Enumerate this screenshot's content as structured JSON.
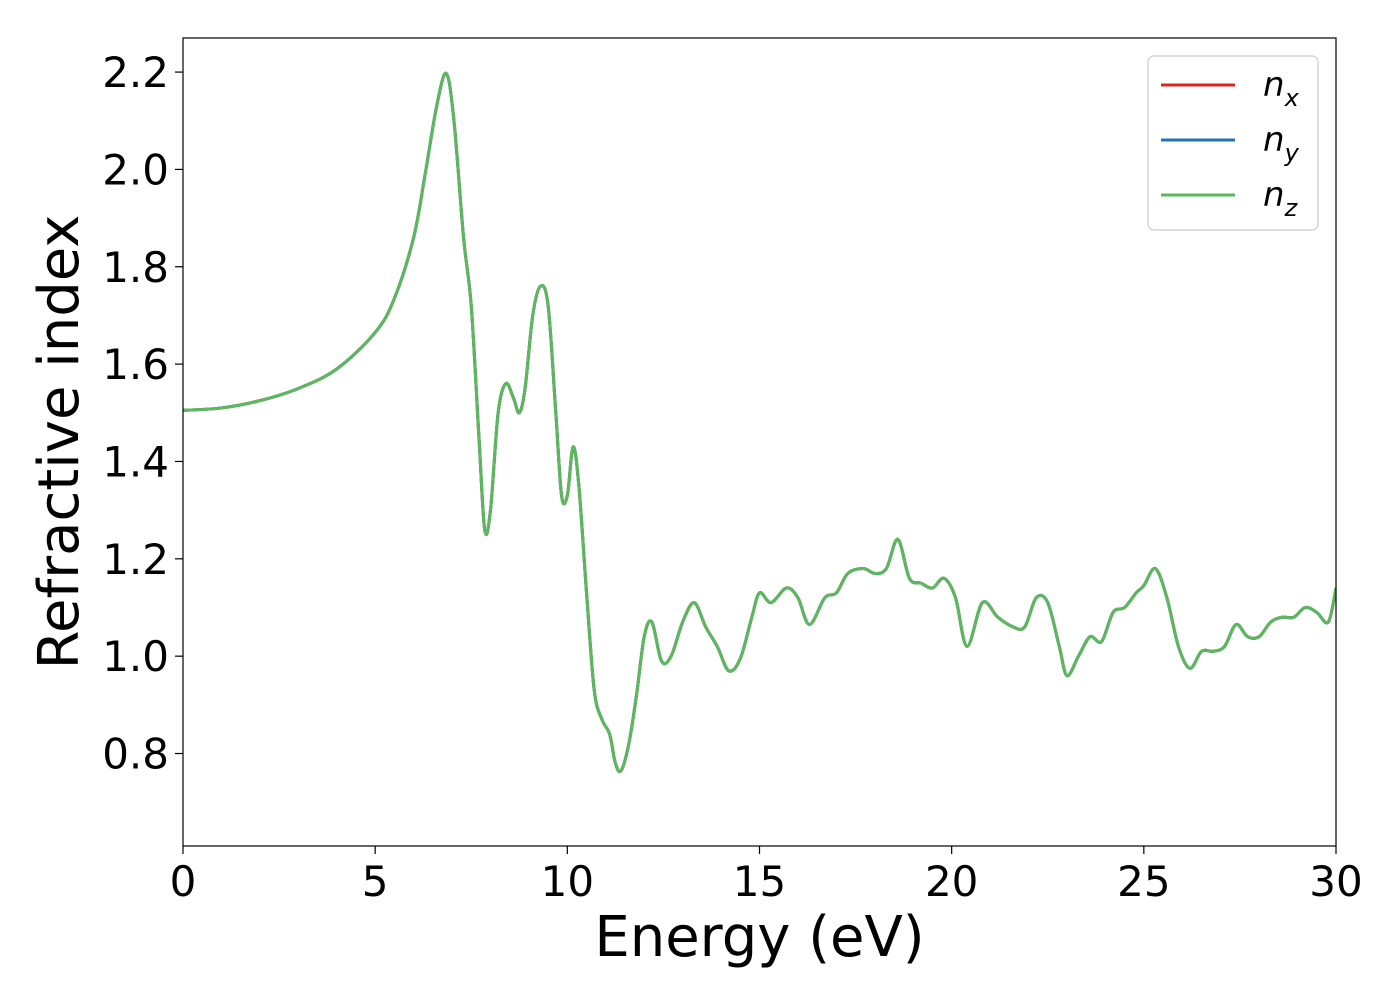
{
  "chart_data": {
    "type": "line",
    "xlabel": "Energy (eV)",
    "ylabel": "Refractive index",
    "xlim": [
      0,
      30
    ],
    "ylim": [
      0.61,
      2.27
    ],
    "xticks": [
      0,
      5,
      10,
      15,
      20,
      25,
      30
    ],
    "yticks": [
      0.8,
      1.0,
      1.2,
      1.4,
      1.6,
      1.8,
      2.0,
      2.2
    ],
    "grid": false,
    "legend_position": "top-right",
    "x": [
      0,
      1,
      2,
      3,
      4,
      5,
      5.5,
      6,
      6.3,
      6.6,
      6.85,
      7.05,
      7.3,
      7.5,
      7.7,
      7.85,
      8.0,
      8.2,
      8.4,
      8.6,
      8.75,
      8.9,
      9.1,
      9.3,
      9.5,
      9.7,
      9.85,
      10.0,
      10.15,
      10.3,
      10.5,
      10.7,
      10.9,
      11.1,
      11.25,
      11.4,
      11.6,
      11.8,
      12.0,
      12.2,
      12.45,
      12.7,
      13.0,
      13.3,
      13.6,
      13.9,
      14.2,
      14.5,
      14.8,
      15.0,
      15.3,
      15.7,
      16.0,
      16.3,
      16.7,
      17.0,
      17.3,
      17.7,
      18.0,
      18.3,
      18.6,
      18.9,
      19.2,
      19.5,
      19.8,
      20.1,
      20.4,
      20.8,
      21.2,
      21.6,
      21.9,
      22.2,
      22.5,
      22.8,
      23.0,
      23.3,
      23.6,
      23.9,
      24.2,
      24.5,
      24.8,
      25.0,
      25.3,
      25.6,
      25.9,
      26.2,
      26.5,
      26.8,
      27.1,
      27.4,
      27.7,
      28.0,
      28.3,
      28.6,
      28.9,
      29.2,
      29.5,
      29.8,
      30.0
    ],
    "series": [
      {
        "name": "n",
        "subscript": "x",
        "color": "#d62728",
        "values": [
          1.505,
          1.51,
          1.525,
          1.55,
          1.59,
          1.665,
          1.735,
          1.86,
          1.99,
          2.13,
          2.197,
          2.1,
          1.86,
          1.72,
          1.45,
          1.26,
          1.3,
          1.5,
          1.56,
          1.53,
          1.5,
          1.55,
          1.7,
          1.76,
          1.72,
          1.5,
          1.33,
          1.33,
          1.43,
          1.35,
          1.13,
          0.93,
          0.87,
          0.84,
          0.78,
          0.765,
          0.82,
          0.92,
          1.04,
          1.07,
          0.99,
          1.0,
          1.07,
          1.11,
          1.06,
          1.02,
          0.97,
          0.995,
          1.08,
          1.13,
          1.11,
          1.14,
          1.12,
          1.065,
          1.12,
          1.13,
          1.17,
          1.18,
          1.17,
          1.18,
          1.24,
          1.16,
          1.15,
          1.14,
          1.16,
          1.12,
          1.02,
          1.11,
          1.08,
          1.06,
          1.06,
          1.12,
          1.11,
          1.02,
          0.96,
          1.0,
          1.04,
          1.03,
          1.09,
          1.1,
          1.13,
          1.145,
          1.18,
          1.12,
          1.02,
          0.975,
          1.01,
          1.01,
          1.02,
          1.065,
          1.04,
          1.04,
          1.07,
          1.08,
          1.08,
          1.1,
          1.09,
          1.07,
          1.14
        ]
      },
      {
        "name": "n",
        "subscript": "y",
        "color": "#1f77b4",
        "values": [
          1.505,
          1.51,
          1.525,
          1.55,
          1.59,
          1.665,
          1.735,
          1.86,
          1.99,
          2.13,
          2.197,
          2.1,
          1.86,
          1.72,
          1.45,
          1.26,
          1.3,
          1.5,
          1.56,
          1.53,
          1.5,
          1.55,
          1.7,
          1.76,
          1.72,
          1.5,
          1.33,
          1.33,
          1.43,
          1.35,
          1.13,
          0.93,
          0.87,
          0.84,
          0.78,
          0.765,
          0.82,
          0.92,
          1.04,
          1.07,
          0.99,
          1.0,
          1.07,
          1.11,
          1.06,
          1.02,
          0.97,
          0.995,
          1.08,
          1.13,
          1.11,
          1.14,
          1.12,
          1.065,
          1.12,
          1.13,
          1.17,
          1.18,
          1.17,
          1.18,
          1.24,
          1.16,
          1.15,
          1.14,
          1.16,
          1.12,
          1.02,
          1.11,
          1.08,
          1.06,
          1.06,
          1.12,
          1.11,
          1.02,
          0.96,
          1.0,
          1.04,
          1.03,
          1.09,
          1.1,
          1.13,
          1.145,
          1.18,
          1.12,
          1.02,
          0.975,
          1.01,
          1.01,
          1.02,
          1.065,
          1.04,
          1.04,
          1.07,
          1.08,
          1.08,
          1.1,
          1.09,
          1.07,
          1.14
        ]
      },
      {
        "name": "n",
        "subscript": "z",
        "color": "#5cb85c",
        "values": [
          1.505,
          1.51,
          1.525,
          1.55,
          1.59,
          1.665,
          1.735,
          1.86,
          1.99,
          2.13,
          2.197,
          2.1,
          1.86,
          1.72,
          1.45,
          1.26,
          1.3,
          1.5,
          1.56,
          1.53,
          1.5,
          1.55,
          1.7,
          1.76,
          1.72,
          1.5,
          1.33,
          1.33,
          1.43,
          1.35,
          1.13,
          0.93,
          0.87,
          0.84,
          0.78,
          0.765,
          0.82,
          0.92,
          1.04,
          1.07,
          0.99,
          1.0,
          1.07,
          1.11,
          1.06,
          1.02,
          0.97,
          0.995,
          1.08,
          1.13,
          1.11,
          1.14,
          1.12,
          1.065,
          1.12,
          1.13,
          1.17,
          1.18,
          1.17,
          1.18,
          1.24,
          1.16,
          1.15,
          1.14,
          1.16,
          1.12,
          1.02,
          1.11,
          1.08,
          1.06,
          1.06,
          1.12,
          1.11,
          1.02,
          0.96,
          1.0,
          1.04,
          1.03,
          1.09,
          1.1,
          1.13,
          1.145,
          1.18,
          1.12,
          1.02,
          0.975,
          1.01,
          1.01,
          1.02,
          1.065,
          1.04,
          1.04,
          1.07,
          1.08,
          1.08,
          1.1,
          1.09,
          1.07,
          1.14
        ]
      }
    ]
  }
}
